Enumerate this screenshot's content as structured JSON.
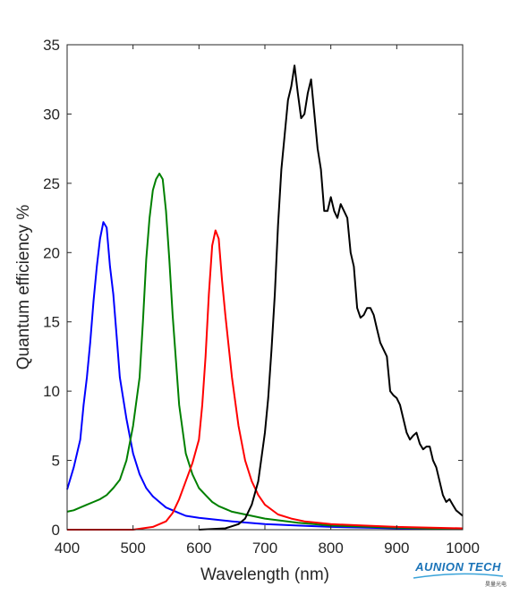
{
  "chart_data": {
    "type": "line",
    "xlabel": "Wavelength (nm)",
    "ylabel": "Quantum efficiency %",
    "xlim": [
      400,
      1000
    ],
    "ylim": [
      0,
      35
    ],
    "xticks": [
      400,
      500,
      600,
      700,
      800,
      900,
      1000
    ],
    "yticks": [
      0,
      5,
      10,
      15,
      20,
      25,
      30,
      35
    ],
    "grid": false,
    "legend": "none",
    "series": [
      {
        "color": "#0000ff",
        "x": [
          400,
          410,
          420,
          425,
          430,
          435,
          440,
          445,
          450,
          455,
          460,
          465,
          470,
          475,
          480,
          490,
          500,
          510,
          520,
          530,
          540,
          550,
          560,
          570,
          580,
          600,
          650,
          700,
          750,
          800,
          900,
          1000
        ],
        "y": [
          2.9,
          4.5,
          6.5,
          9.0,
          11.0,
          13.5,
          16.5,
          19.0,
          21.0,
          22.2,
          21.8,
          19.0,
          17.0,
          14.0,
          11.0,
          8.0,
          5.5,
          4.0,
          3.0,
          2.4,
          2.0,
          1.6,
          1.4,
          1.2,
          1.0,
          0.85,
          0.6,
          0.4,
          0.3,
          0.2,
          0.1,
          0.05
        ]
      },
      {
        "color": "#008000",
        "x": [
          400,
          410,
          420,
          430,
          440,
          450,
          460,
          470,
          480,
          490,
          500,
          510,
          515,
          520,
          525,
          530,
          535,
          540,
          545,
          550,
          555,
          560,
          570,
          580,
          590,
          600,
          610,
          620,
          630,
          650,
          700,
          750,
          800,
          900,
          1000
        ],
        "y": [
          1.3,
          1.4,
          1.6,
          1.8,
          2.0,
          2.2,
          2.5,
          3.0,
          3.6,
          5.0,
          7.5,
          11.0,
          15.0,
          19.5,
          22.5,
          24.5,
          25.3,
          25.7,
          25.3,
          23.0,
          19.5,
          15.5,
          9.0,
          5.5,
          4.0,
          3.0,
          2.5,
          2.0,
          1.7,
          1.3,
          0.8,
          0.5,
          0.3,
          0.15,
          0.05
        ]
      },
      {
        "color": "#ff0000",
        "x": [
          400,
          500,
          530,
          550,
          560,
          570,
          580,
          590,
          600,
          605,
          610,
          615,
          620,
          625,
          630,
          635,
          640,
          650,
          660,
          670,
          680,
          690,
          700,
          720,
          740,
          760,
          800,
          850,
          900,
          1000
        ],
        "y": [
          0.0,
          0.0,
          0.2,
          0.6,
          1.2,
          2.2,
          3.5,
          4.8,
          6.5,
          9.0,
          12.5,
          17.0,
          20.5,
          21.6,
          21.0,
          18.0,
          15.5,
          11.0,
          7.5,
          5.0,
          3.5,
          2.5,
          1.8,
          1.1,
          0.8,
          0.6,
          0.4,
          0.3,
          0.2,
          0.1
        ]
      },
      {
        "color": "#000000",
        "x": [
          600,
          640,
          660,
          670,
          680,
          690,
          700,
          705,
          710,
          715,
          720,
          725,
          730,
          735,
          740,
          745,
          750,
          755,
          760,
          765,
          770,
          775,
          780,
          785,
          790,
          795,
          800,
          805,
          810,
          815,
          820,
          825,
          830,
          835,
          840,
          845,
          850,
          855,
          860,
          865,
          870,
          875,
          880,
          885,
          890,
          895,
          900,
          905,
          910,
          915,
          920,
          925,
          930,
          935,
          940,
          945,
          950,
          955,
          960,
          965,
          970,
          975,
          980,
          985,
          990,
          995,
          1000
        ],
        "y": [
          0.0,
          0.1,
          0.4,
          0.8,
          1.8,
          3.5,
          7.0,
          9.5,
          13.0,
          17.0,
          22.0,
          26.0,
          28.5,
          31.0,
          32.0,
          33.5,
          31.5,
          29.7,
          30.0,
          31.5,
          32.5,
          30.0,
          27.5,
          26.0,
          23.0,
          23.0,
          24.0,
          23.0,
          22.5,
          23.5,
          23.0,
          22.5,
          20.0,
          19.0,
          16.0,
          15.3,
          15.5,
          16.0,
          16.0,
          15.5,
          14.5,
          13.5,
          13.0,
          12.5,
          10.0,
          9.7,
          9.5,
          9.0,
          8.0,
          7.0,
          6.5,
          6.8,
          7.0,
          6.2,
          5.8,
          6.0,
          6.0,
          5.0,
          4.5,
          3.5,
          2.5,
          2.0,
          2.2,
          1.8,
          1.4,
          1.2,
          1.0
        ]
      }
    ]
  },
  "logo": {
    "name": "AUNION TECH",
    "subtitle": "昊量光电"
  }
}
